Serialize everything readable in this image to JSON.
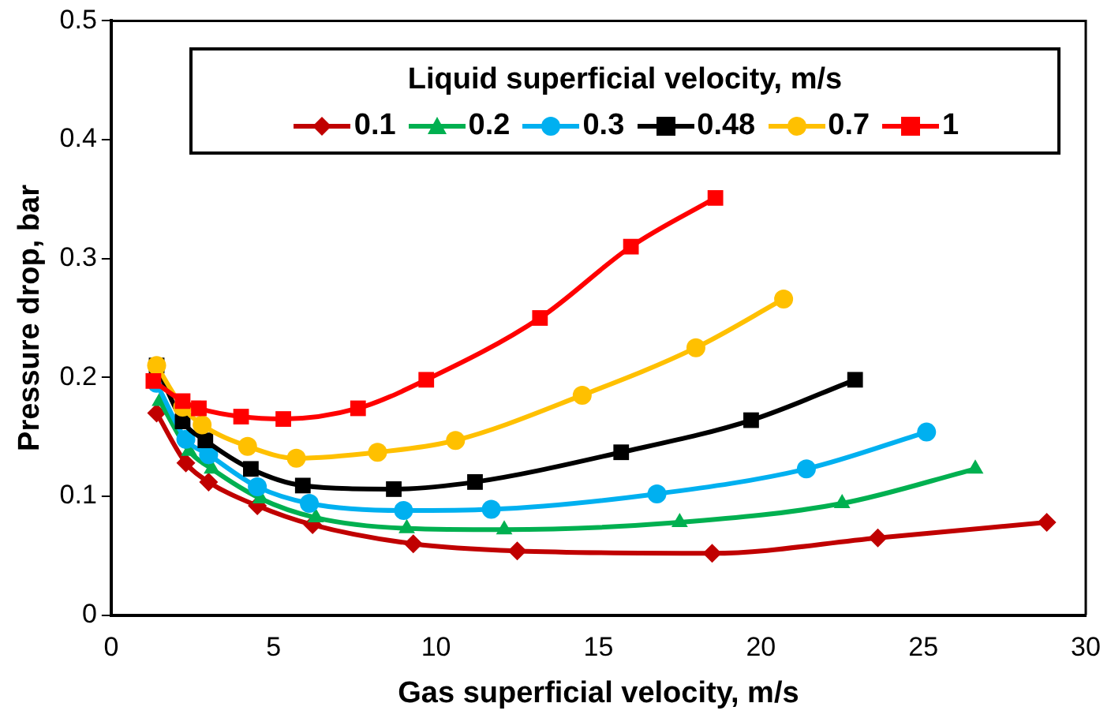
{
  "chart_data": {
    "type": "line",
    "xlabel": "Gas superficial velocity, m/s",
    "ylabel": "Pressure drop, bar",
    "legend_title": "Liquid superficial velocity, m/s",
    "legend": "top",
    "grid": false,
    "xlim": [
      0,
      30
    ],
    "xticks": [
      0,
      5,
      10,
      15,
      20,
      25,
      30
    ],
    "ylim": [
      0,
      0.5
    ],
    "yticks": [
      0,
      0.1,
      0.2,
      0.3,
      0.4,
      0.5
    ],
    "series": [
      {
        "name": "0.1",
        "color": "#c00000",
        "marker": "diamond",
        "x": [
          1.4,
          2.3,
          3,
          4.5,
          6.2,
          9.3,
          12.5,
          18.5,
          23.6,
          28.8
        ],
        "values": [
          0.17,
          0.128,
          0.112,
          0.092,
          0.076,
          0.06,
          0.054,
          0.052,
          0.065,
          0.078
        ]
      },
      {
        "name": "0.2",
        "color": "#00b050",
        "marker": "triangle",
        "x": [
          1.5,
          2.4,
          3.1,
          4.6,
          6.3,
          9.1,
          12.1,
          17.5,
          22.5,
          26.6
        ],
        "values": [
          0.18,
          0.138,
          0.123,
          0.098,
          0.082,
          0.073,
          0.072,
          0.078,
          0.094,
          0.123
        ]
      },
      {
        "name": "0.3",
        "color": "#00b0f0",
        "marker": "circle",
        "x": [
          1.4,
          2.3,
          3,
          4.5,
          6.1,
          9,
          11.7,
          16.8,
          21.4,
          25.1
        ],
        "values": [
          0.195,
          0.148,
          0.135,
          0.108,
          0.094,
          0.088,
          0.089,
          0.102,
          0.123,
          0.154
        ]
      },
      {
        "name": "0.48",
        "color": "#000000",
        "marker": "square",
        "x": [
          1.4,
          2.2,
          2.9,
          4.3,
          5.9,
          8.7,
          11.2,
          15.7,
          19.7,
          22.9
        ],
        "values": [
          0.21,
          0.163,
          0.147,
          0.123,
          0.109,
          0.106,
          0.112,
          0.137,
          0.164,
          0.198
        ]
      },
      {
        "name": "0.7",
        "color": "#ffc000",
        "marker": "circle",
        "x": [
          1.4,
          2.2,
          2.8,
          4.2,
          5.7,
          8.2,
          10.6,
          14.5,
          18,
          20.7
        ],
        "values": [
          0.21,
          0.175,
          0.16,
          0.142,
          0.132,
          0.137,
          0.147,
          0.185,
          0.225,
          0.266
        ]
      },
      {
        "name": "1",
        "color": "#ff0000",
        "marker": "square",
        "x": [
          1.3,
          2.2,
          2.7,
          4,
          5.3,
          7.6,
          9.7,
          13.2,
          16,
          18.6
        ],
        "values": [
          0.197,
          0.18,
          0.174,
          0.167,
          0.165,
          0.174,
          0.198,
          0.25,
          0.31,
          0.351
        ]
      }
    ]
  }
}
